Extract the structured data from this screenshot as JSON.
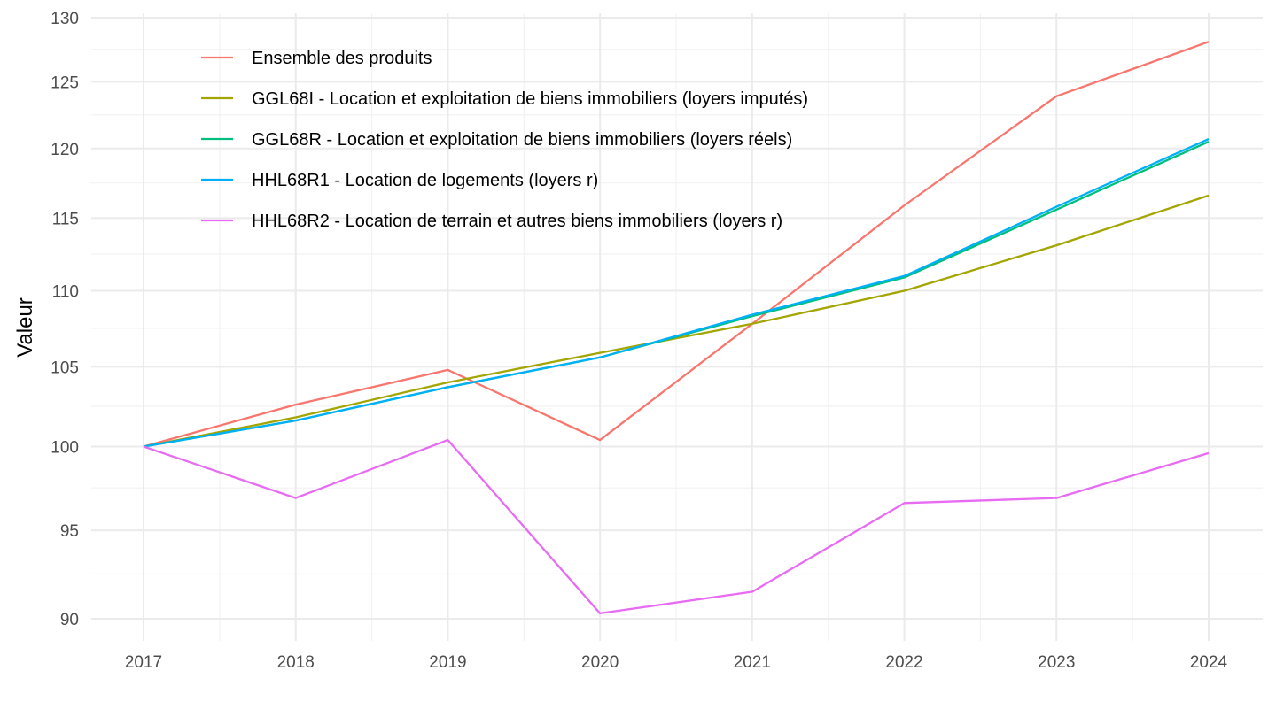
{
  "chart_data": {
    "type": "line",
    "title": "",
    "xlabel": "",
    "ylabel": "Valeur",
    "y_scale": "log",
    "x": [
      2017,
      2018,
      2019,
      2020,
      2021,
      2022,
      2023,
      2024
    ],
    "x_tick_labels": [
      "2017",
      "2018",
      "2019",
      "2020",
      "2021",
      "2022",
      "2023",
      "2024"
    ],
    "y_ticks": [
      90,
      95,
      100,
      105,
      110,
      115,
      120,
      125,
      130
    ],
    "y_tick_labels": [
      "90",
      "95",
      "100",
      "105",
      "110",
      "115",
      "120",
      "125",
      "130"
    ],
    "y_minor_ticks": [
      92.5,
      97.5,
      102.5,
      107.5,
      112.5,
      117.5,
      122.5,
      127.5
    ],
    "xlim": [
      2016.66,
      2024.35
    ],
    "ylim": [
      88.7,
      131.4
    ],
    "grid": true,
    "legend_position": "top-left (inside plot)",
    "series": [
      {
        "name": "Ensemble des produits",
        "color": "#F8766D",
        "values": [
          100.0,
          102.6,
          104.8,
          100.4,
          107.8,
          115.9,
          123.9,
          128.1
        ]
      },
      {
        "name": "GGL68I - Location et exploitation de biens immobiliers (loyers imputés)",
        "color": "#A3A500",
        "values": [
          100.0,
          101.8,
          104.0,
          105.9,
          107.8,
          110.0,
          113.1,
          116.6
        ]
      },
      {
        "name": "GGL68R - Location et exploitation de biens immobiliers (loyers réels)",
        "color": "#00BF7D",
        "values": [
          100.0,
          101.6,
          103.7,
          105.6,
          108.3,
          110.9,
          115.6,
          120.5
        ]
      },
      {
        "name": "HHL68R1 - Location de logements (loyers r)",
        "color": "#00B0F6",
        "values": [
          100.0,
          101.6,
          103.7,
          105.6,
          108.4,
          111.0,
          115.8,
          120.7
        ]
      },
      {
        "name": "HHL68R2 - Location de terrain et autres biens immobiliers (loyers r)",
        "color": "#E76BF3",
        "values": [
          100.0,
          96.9,
          100.4,
          90.3,
          91.5,
          96.6,
          96.9,
          99.6
        ]
      }
    ]
  }
}
